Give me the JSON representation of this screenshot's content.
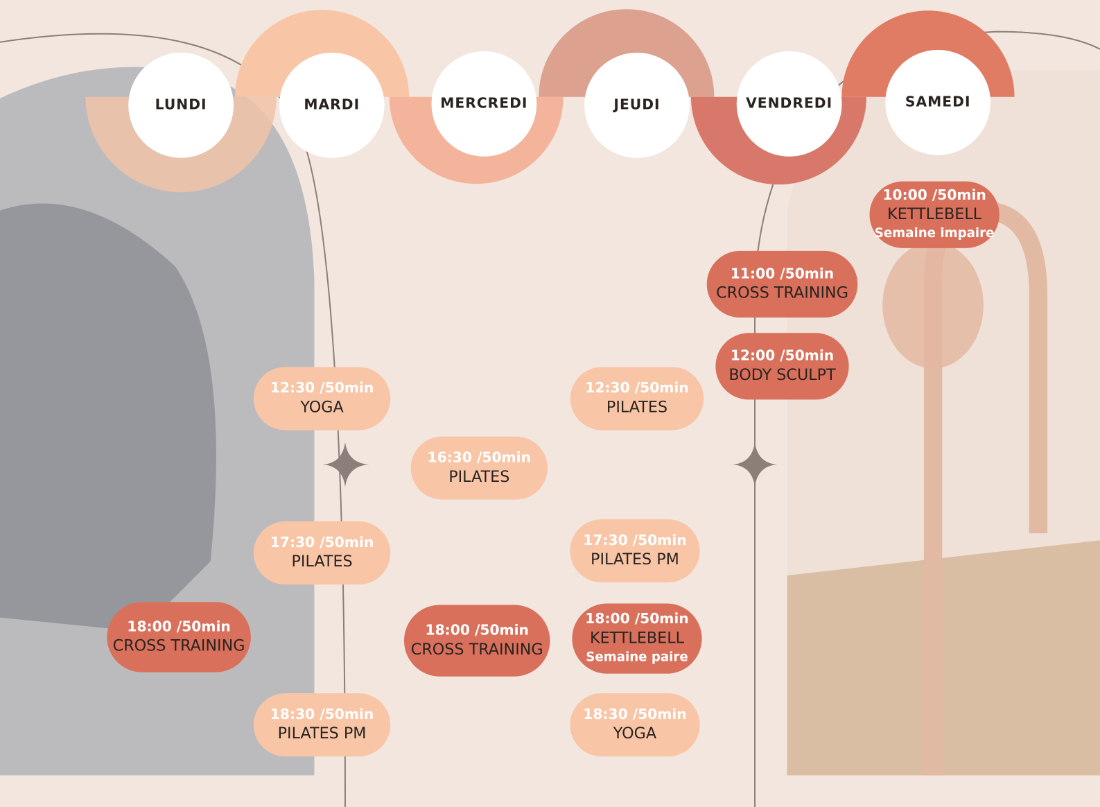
{
  "days": [
    {
      "name": "LUNDI",
      "classes": [
        {
          "time": "18:00 /50min",
          "name": "CROSS TRAINING",
          "color": "#d8705c"
        }
      ]
    },
    {
      "name": "MARDI",
      "classes": [
        {
          "time": "12:30 /50min",
          "name": "YOGA",
          "color": "#f8c6a6"
        },
        {
          "time": "17:30 /50min",
          "name": "PILATES",
          "color": "#f8c6a6"
        },
        {
          "time": "18:30 /50min",
          "name": "PILATES PM",
          "color": "#f8c6a6"
        }
      ]
    },
    {
      "name": "MERCREDI",
      "classes": [
        {
          "time": "16:30 /50min",
          "name": "PILATES",
          "color": "#f8c6a6"
        },
        {
          "time": "18:00 /50min",
          "name": "CROSS TRAINING",
          "color": "#d8705c"
        }
      ]
    },
    {
      "name": "JEUDI",
      "classes": [
        {
          "time": "12:30 /50min",
          "name": "PILATES",
          "color": "#f8c6a6"
        },
        {
          "time": "17:30 /50min",
          "name": "PILATES PM",
          "color": "#f8c6a6"
        },
        {
          "time": "18:00 /50min",
          "name": "KETTLEBELL",
          "note": "Semaine paire",
          "color": "#d8705c"
        },
        {
          "time": "18:30 /50min",
          "name": "YOGA",
          "color": "#f8c6a6"
        }
      ]
    },
    {
      "name": "VENDREDI",
      "classes": [
        {
          "time": "11:00 /50min",
          "name": "CROSS TRAINING",
          "color": "#d8705c"
        },
        {
          "time": "12:00 /50min",
          "name": "BODY SCULPT",
          "color": "#d8705c"
        }
      ]
    },
    {
      "name": "SAMEDI",
      "classes": [
        {
          "time": "10:00 /50min",
          "name": "KETTLEBELL",
          "note": "Semaine impaire",
          "color": "#d8705c"
        }
      ]
    }
  ]
}
